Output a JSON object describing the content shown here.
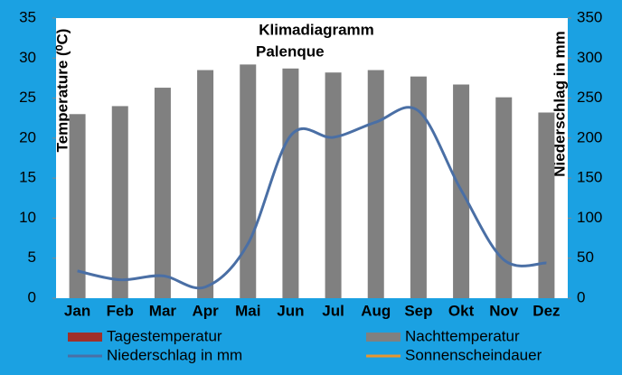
{
  "chart_data": {
    "type": "bar-line",
    "title": "Klimadiagramm",
    "subtitle": "Palenque",
    "y_label": "Temperature (⁰C)",
    "y2_label": "Niederschlag in mm",
    "categories": [
      "Jan",
      "Feb",
      "Mar",
      "Apr",
      "Mai",
      "Jun",
      "Jul",
      "Aug",
      "Sep",
      "Okt",
      "Nov",
      "Dez"
    ],
    "series": [
      {
        "name": "Tagestemperatur",
        "color": "#a0302a",
        "kind": "bar",
        "values": [
          null,
          null,
          null,
          null,
          null,
          null,
          null,
          null,
          null,
          null,
          null,
          null
        ]
      },
      {
        "name": "Nachttemperatur",
        "color": "#808080",
        "kind": "bar",
        "values": [
          23,
          24,
          26.3,
          28.5,
          29.2,
          28.7,
          28.2,
          28.5,
          27.7,
          26.7,
          25.1,
          23.2
        ]
      },
      {
        "name": "Niederschlag in mm",
        "color": "#4a6fa5",
        "kind": "line",
        "axis": "y2",
        "values": [
          34,
          23,
          28,
          14,
          68,
          203,
          201,
          220,
          234,
          135,
          48,
          44
        ]
      },
      {
        "name": "Sonnenscheindauer",
        "color": "#e8962e",
        "kind": "line",
        "axis": "y2",
        "values": [
          null,
          null,
          null,
          null,
          null,
          null,
          null,
          null,
          null,
          null,
          null,
          null
        ]
      }
    ],
    "ylim": [
      0,
      35
    ],
    "yticks": [
      0,
      5,
      10,
      15,
      20,
      25,
      30,
      35
    ],
    "y2lim": [
      0,
      350
    ],
    "y2ticks": [
      0,
      50,
      100,
      150,
      200,
      250,
      300,
      350
    ],
    "grid": false
  }
}
